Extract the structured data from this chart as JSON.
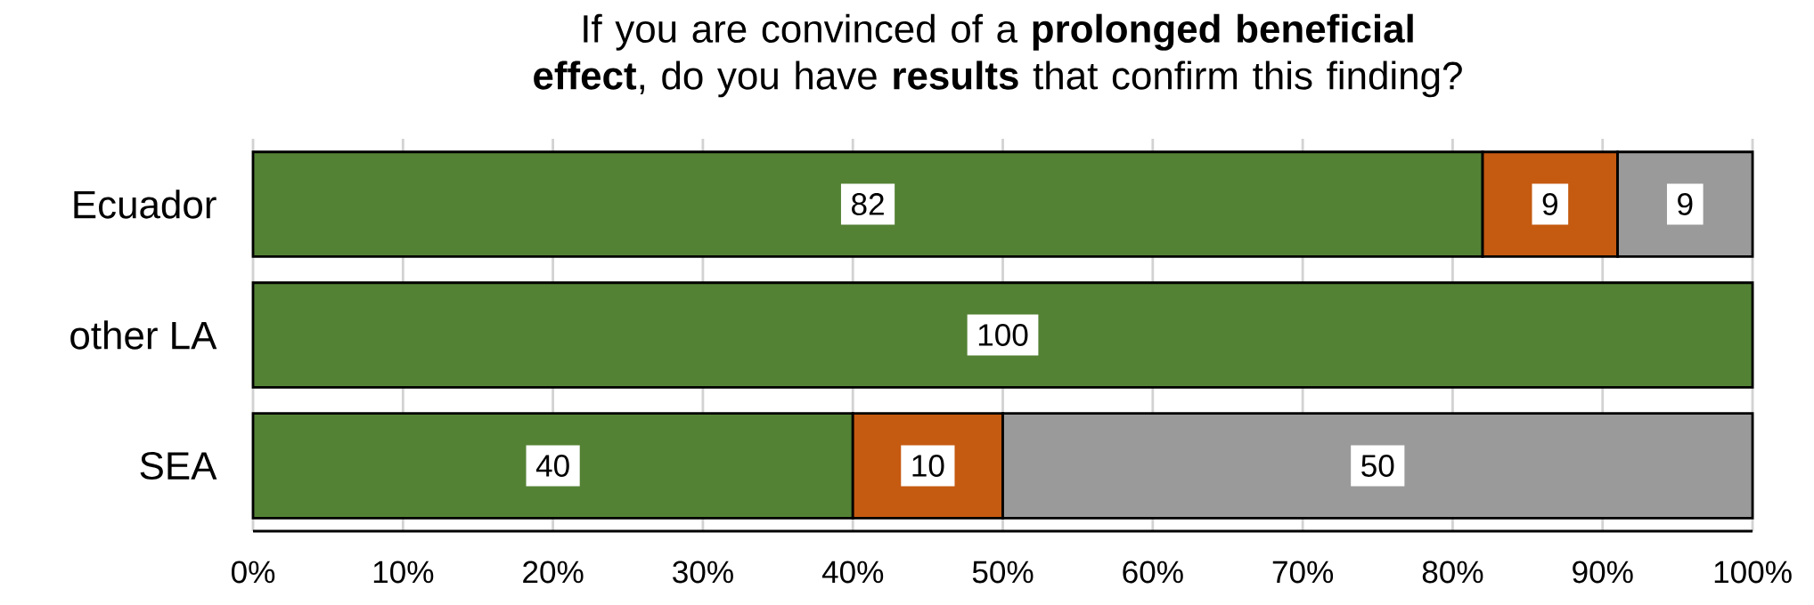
{
  "chart_data": {
    "type": "bar",
    "orientation": "horizontal",
    "stacked": true,
    "title": "If you are convinced of a **prolonged beneficial effect**, do you have **results** that confirm this finding?",
    "categories": [
      "Ecuador",
      "other LA",
      "SEA"
    ],
    "series": [
      {
        "color": "#548235",
        "values": [
          82,
          100,
          40
        ]
      },
      {
        "color": "#c55a11",
        "values": [
          9,
          null,
          10
        ]
      },
      {
        "color": "#9a9a9a",
        "values": [
          9,
          null,
          50
        ]
      }
    ],
    "xlim": [
      0,
      100
    ],
    "xticks": [
      {
        "value": 0,
        "label": "0%"
      },
      {
        "value": 10,
        "label": "10%"
      },
      {
        "value": 20,
        "label": "20%"
      },
      {
        "value": 30,
        "label": "30%"
      },
      {
        "value": 40,
        "label": "40%"
      },
      {
        "value": 50,
        "label": "50%"
      },
      {
        "value": 60,
        "label": "60%"
      },
      {
        "value": 70,
        "label": "70%"
      },
      {
        "value": 80,
        "label": "80%"
      },
      {
        "value": 90,
        "label": "90%"
      },
      {
        "value": 100,
        "label": "100%"
      }
    ],
    "grid": "x",
    "data_labels": true
  }
}
